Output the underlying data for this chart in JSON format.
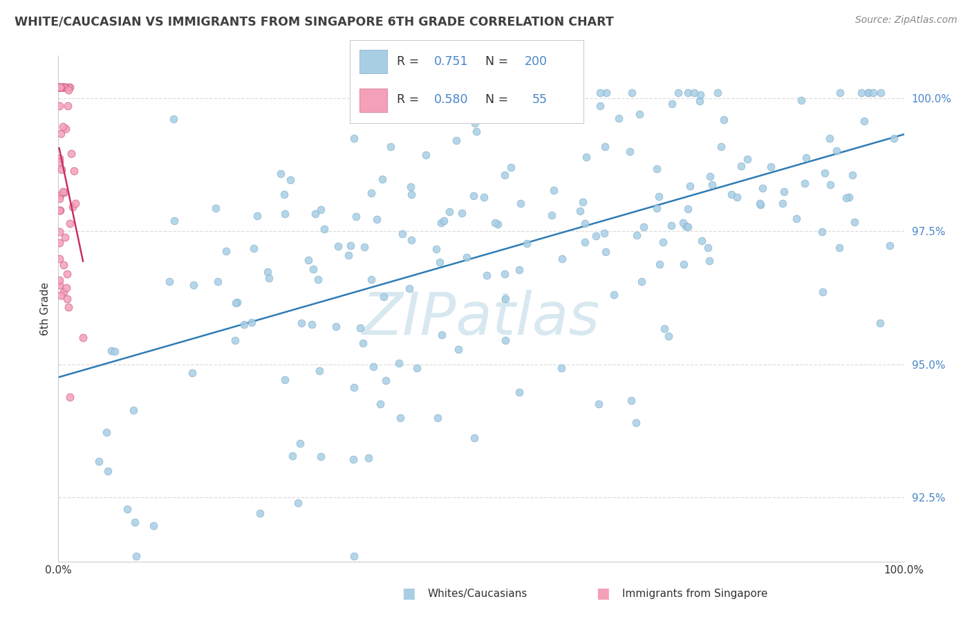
{
  "title": "WHITE/CAUCASIAN VS IMMIGRANTS FROM SINGAPORE 6TH GRADE CORRELATION CHART",
  "source": "Source: ZipAtlas.com",
  "ylabel": "6th Grade",
  "xmin": 0.0,
  "xmax": 1.0,
  "ymin": 0.913,
  "ymax": 1.008,
  "yticks": [
    0.925,
    0.95,
    0.975,
    1.0
  ],
  "ytick_labels": [
    "92.5%",
    "95.0%",
    "97.5%",
    "100.0%"
  ],
  "xticks": [
    0.0,
    1.0
  ],
  "xtick_labels": [
    "0.0%",
    "100.0%"
  ],
  "blue_R": 0.751,
  "blue_N": 200,
  "pink_R": 0.58,
  "pink_N": 55,
  "blue_color": "#A8CEE4",
  "blue_edge_color": "#7AAAC8",
  "pink_color": "#F4A0B8",
  "pink_edge_color": "#D06888",
  "blue_line_color": "#2E7BB4",
  "pink_line_color": "#C83060",
  "watermark_color": "#D8E8F0",
  "watermark_text": "ZIPatlas",
  "legend_label_blue": "Whites/Caucasians",
  "legend_label_pink": "Immigrants from Singapore",
  "title_color": "#404040",
  "source_color": "#888888",
  "axis_color": "#4a86c8",
  "text_color": "#333333",
  "grid_color": "#dddddd",
  "legend_R_N_color": "#4a86c8"
}
